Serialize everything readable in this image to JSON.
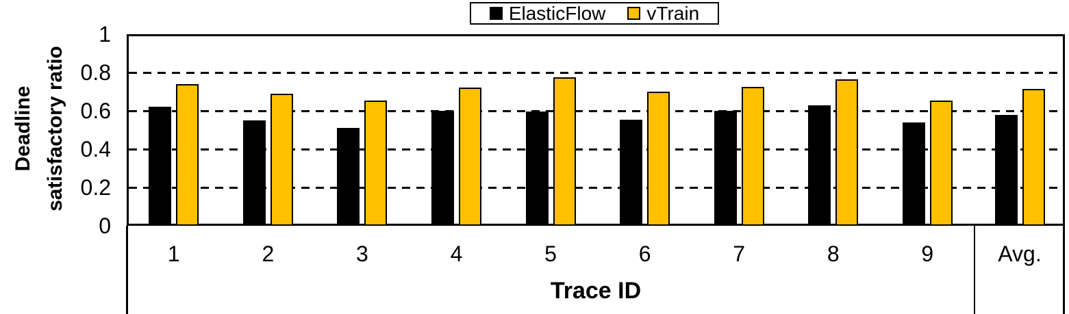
{
  "chart_data": {
    "type": "bar",
    "title": "",
    "categories": [
      "1",
      "2",
      "3",
      "4",
      "5",
      "6",
      "7",
      "8",
      "9",
      "Avg."
    ],
    "series": [
      {
        "name": "ElasticFlow",
        "color": "#000000",
        "values": [
          0.62,
          0.55,
          0.51,
          0.6,
          0.595,
          0.555,
          0.6,
          0.63,
          0.54,
          0.58
        ]
      },
      {
        "name": "vTrain",
        "color": "#FFC000",
        "values": [
          0.74,
          0.69,
          0.655,
          0.72,
          0.775,
          0.7,
          0.725,
          0.765,
          0.655,
          0.715
        ]
      }
    ],
    "xlabel": "Trace ID",
    "ylabel_lines": [
      "Deadline",
      "satisfactory ratio"
    ],
    "ylim": [
      0,
      1
    ],
    "yticks": [
      0,
      0.2,
      0.4,
      0.6,
      0.8,
      1
    ],
    "grid": "horizontal-dashed",
    "legend_position": "top-center",
    "avg_separated": true
  }
}
